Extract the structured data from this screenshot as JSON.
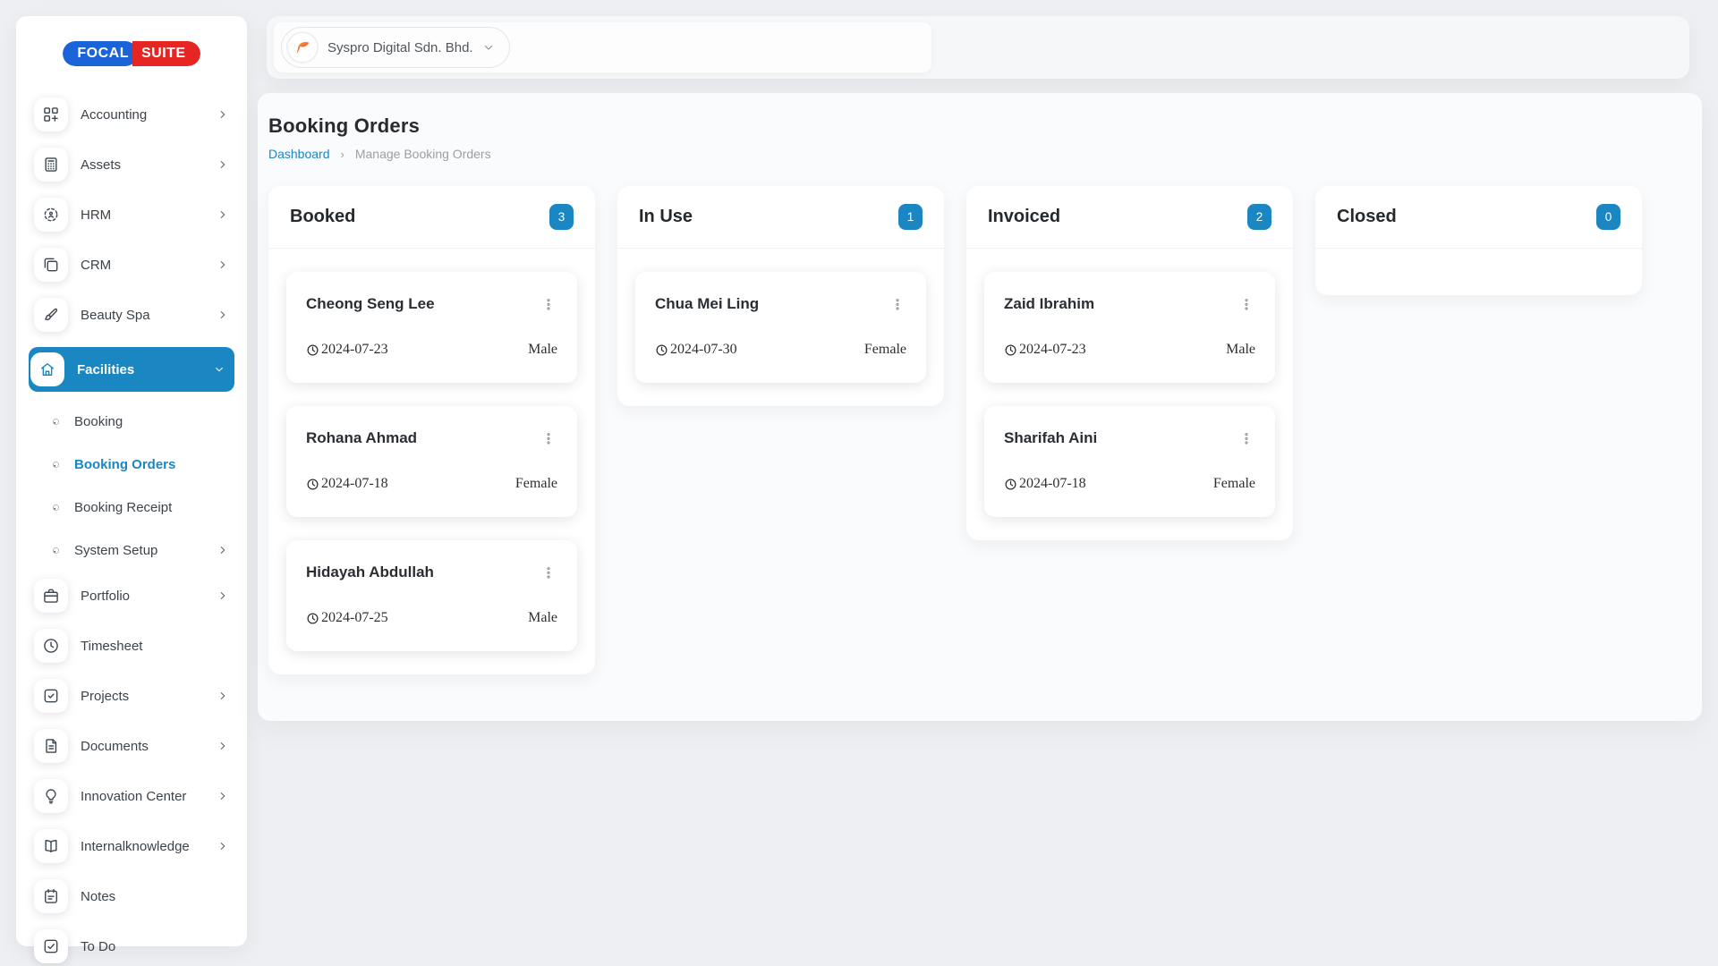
{
  "colors": {
    "accent": "#1a87c2",
    "brand_blue": "#1a63d8",
    "brand_red": "#e52622",
    "link": "#1a87c2"
  },
  "brand": {
    "focal": "FOCAL",
    "suite": "SUITE"
  },
  "header": {
    "company_name": "Syspro Digital Sdn. Bhd."
  },
  "sidebar": {
    "items": [
      {
        "label": "Accounting",
        "icon": "accounting",
        "kind": "main",
        "arrow": "right"
      },
      {
        "label": "Assets",
        "icon": "assets",
        "kind": "main",
        "arrow": "right"
      },
      {
        "label": "HRM",
        "icon": "hrm",
        "kind": "main",
        "arrow": "right"
      },
      {
        "label": "CRM",
        "icon": "crm",
        "kind": "main",
        "arrow": "right"
      },
      {
        "label": "Beauty Spa",
        "icon": "beauty-spa",
        "kind": "main",
        "arrow": "right"
      },
      {
        "label": "Facilities",
        "icon": "facilities",
        "kind": "main",
        "arrow": "down",
        "active": true
      },
      {
        "label": "Booking",
        "kind": "sub"
      },
      {
        "label": "Booking Orders",
        "kind": "sub",
        "active": true
      },
      {
        "label": "Booking Receipt",
        "kind": "sub"
      },
      {
        "label": "System Setup",
        "kind": "sub",
        "arrow": "right"
      },
      {
        "label": "Portfolio",
        "icon": "portfolio",
        "kind": "main",
        "arrow": "right"
      },
      {
        "label": "Timesheet",
        "icon": "timesheet",
        "kind": "main"
      },
      {
        "label": "Projects",
        "icon": "projects",
        "kind": "main",
        "arrow": "right"
      },
      {
        "label": "Documents",
        "icon": "documents",
        "kind": "main",
        "arrow": "right"
      },
      {
        "label": "Innovation Center",
        "icon": "innovation",
        "kind": "main",
        "arrow": "right"
      },
      {
        "label": "Internalknowledge",
        "icon": "internalknowledge",
        "kind": "main",
        "arrow": "right"
      },
      {
        "label": "Notes",
        "icon": "notes",
        "kind": "main"
      },
      {
        "label": "To Do",
        "icon": "todo",
        "kind": "main"
      }
    ]
  },
  "page": {
    "title": "Booking Orders",
    "breadcrumb": {
      "link": "Dashboard",
      "separator": "›",
      "current": "Manage Booking Orders"
    }
  },
  "board": {
    "columns": [
      {
        "title": "Booked",
        "count": "3",
        "cards": [
          {
            "name": "Cheong Seng Lee",
            "date": "2024-07-23",
            "gender": "Male"
          },
          {
            "name": "Rohana Ahmad",
            "date": "2024-07-18",
            "gender": "Female"
          },
          {
            "name": "Hidayah Abdullah",
            "date": "2024-07-25",
            "gender": "Male"
          }
        ]
      },
      {
        "title": "In Use",
        "count": "1",
        "cards": [
          {
            "name": "Chua Mei Ling",
            "date": "2024-07-30",
            "gender": "Female"
          }
        ]
      },
      {
        "title": "Invoiced",
        "count": "2",
        "cards": [
          {
            "name": "Zaid Ibrahim",
            "date": "2024-07-23",
            "gender": "Male"
          },
          {
            "name": "Sharifah Aini",
            "date": "2024-07-18",
            "gender": "Female"
          }
        ]
      },
      {
        "title": "Closed",
        "count": "0",
        "cards": []
      }
    ]
  }
}
